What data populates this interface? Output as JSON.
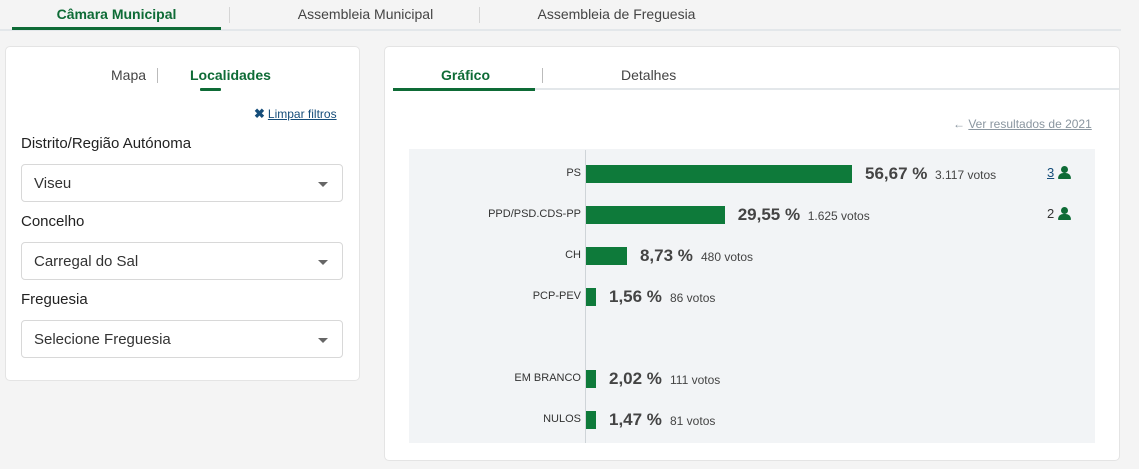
{
  "top_tabs": [
    "Câmara Municipal",
    "Assembleia Municipal",
    "Assembleia de Freguesia"
  ],
  "left_panel": {
    "tabs": [
      "Mapa",
      "Localidades"
    ],
    "clear_filters": "Limpar filtros",
    "filters": [
      {
        "label": "Distrito/Região Autónoma",
        "value": "Viseu"
      },
      {
        "label": "Concelho",
        "value": "Carregal do Sal"
      },
      {
        "label": "Freguesia",
        "value": "Selecione Freguesia"
      }
    ]
  },
  "right_panel": {
    "tabs": [
      "Gráfico",
      "Detalhes"
    ],
    "previous_results": "Ver resultados de 2021"
  },
  "chart_data": {
    "type": "bar",
    "orientation": "horizontal",
    "categories": [
      "PS",
      "PPD/PSD.CDS-PP",
      "CH",
      "PCP-PEV",
      "EM BRANCO",
      "NULOS"
    ],
    "values": [
      56.67,
      29.55,
      8.73,
      1.56,
      2.02,
      1.47
    ],
    "pct_labels": [
      "56,67 %",
      "29,55 %",
      "8,73 %",
      "1,56 %",
      "2,02 %",
      "1,47 %"
    ],
    "votes": [
      "3.117 votos",
      "1.625 votos",
      "480 votos",
      "86 votos",
      "111 votos",
      "81 votos"
    ],
    "mandates": [
      "3",
      "2",
      "",
      "",
      "",
      ""
    ],
    "color": "#0e7a3a",
    "xlim": [
      0,
      100
    ]
  }
}
